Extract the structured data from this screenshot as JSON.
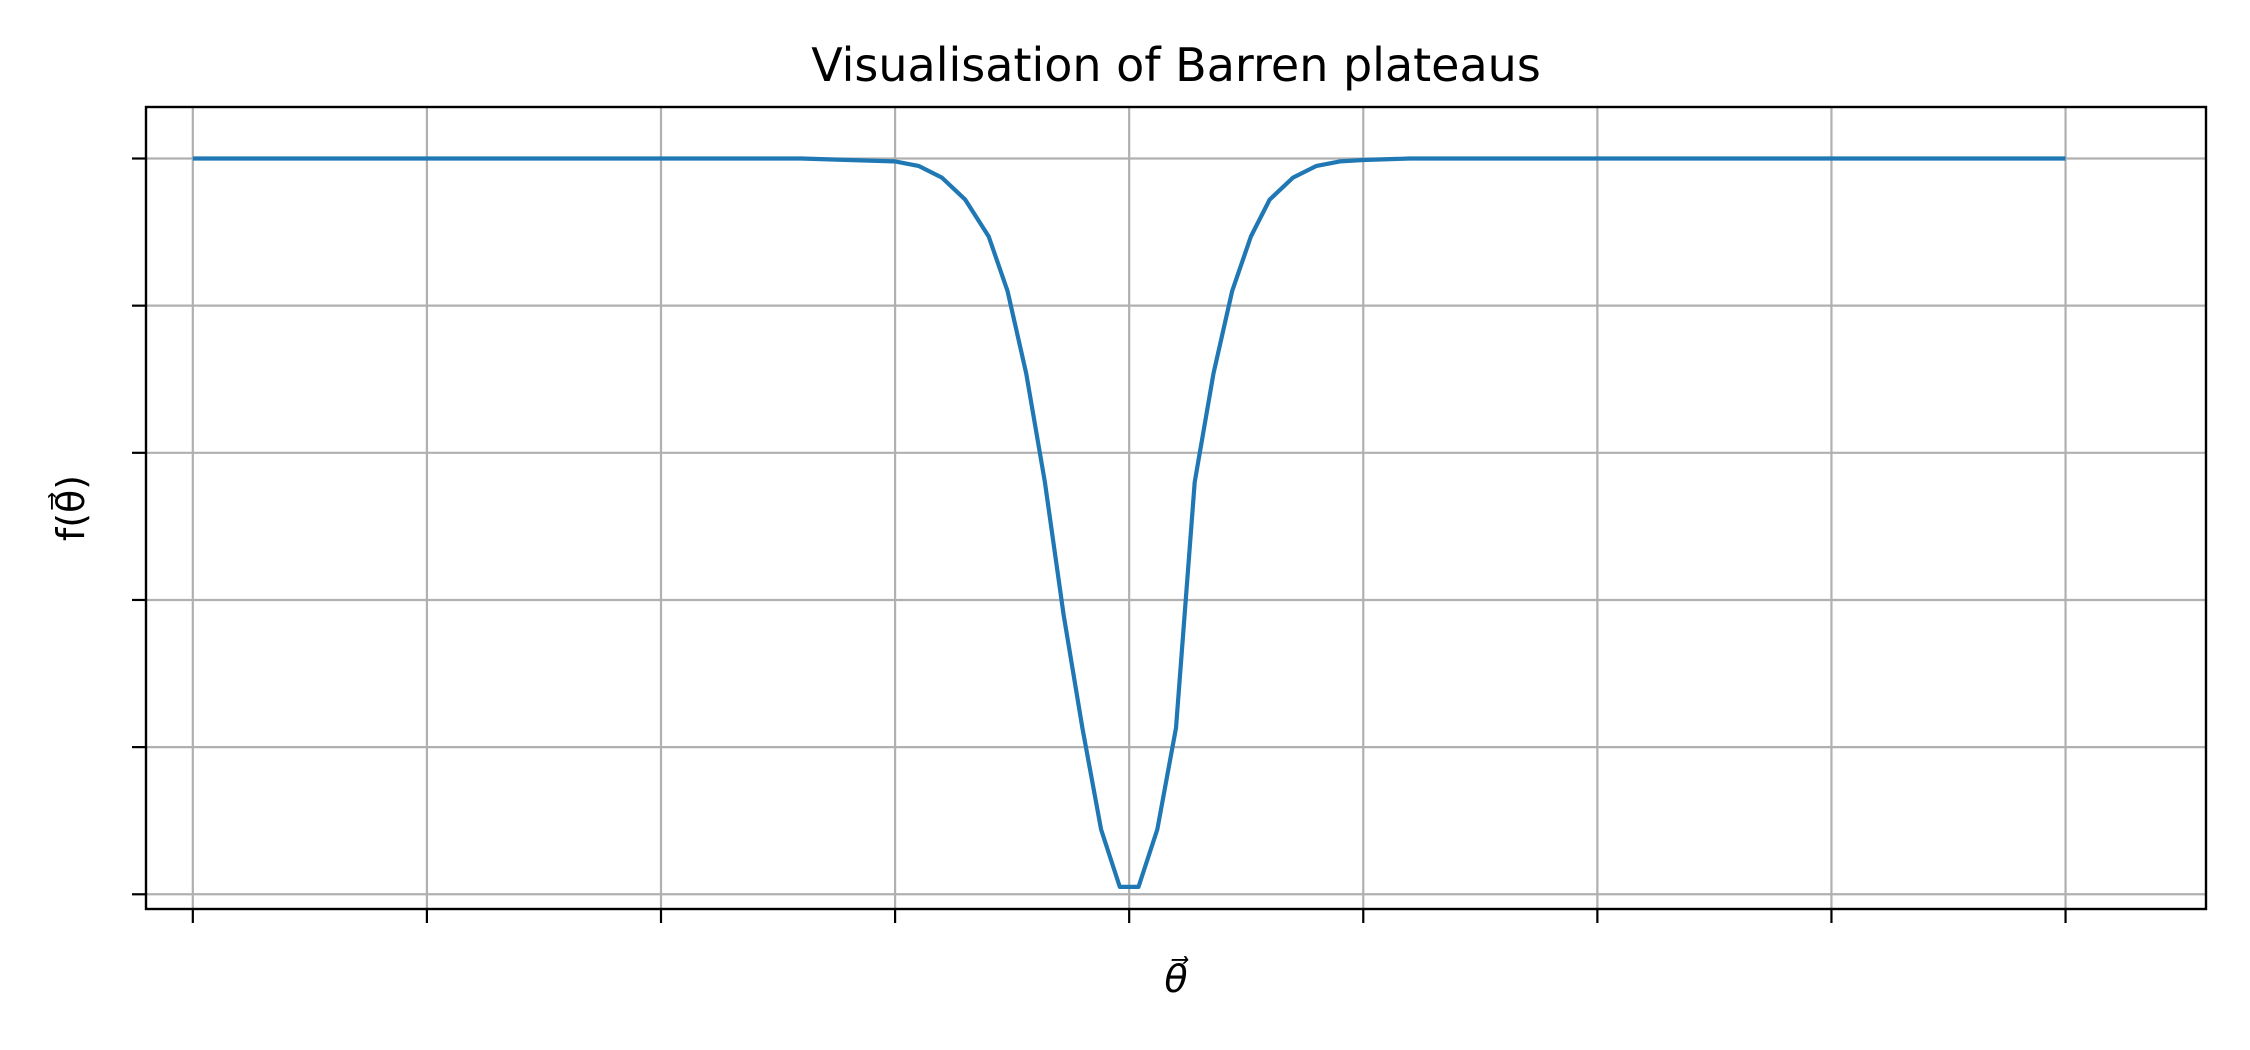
{
  "chart_data": {
    "type": "line",
    "title": "Visualisation of Barren plateaus",
    "xlabel": "θ⃗",
    "ylabel": "f(θ⃗)",
    "show_tick_labels": false,
    "xlim": [
      -4.2,
      4.6
    ],
    "ylim": [
      -0.1,
      5.35
    ],
    "x_ticks": [
      -4,
      -3,
      -2,
      -1,
      0,
      1,
      2,
      3,
      4
    ],
    "y_ticks": [
      0,
      1,
      2,
      3,
      4,
      5
    ],
    "grid": true,
    "series": [
      {
        "color": "#1f77b4",
        "x": [
          -4.0,
          -1.4,
          -1.2,
          -1.0,
          -0.9,
          -0.8,
          -0.7,
          -0.6,
          -0.52,
          -0.44,
          -0.36,
          -0.28,
          -0.2,
          -0.12,
          -0.04,
          0.04,
          0.12,
          0.2,
          0.28,
          0.36,
          0.44,
          0.52,
          0.6,
          0.7,
          0.8,
          0.9,
          1.0,
          1.2,
          1.4,
          4.0
        ],
        "y": [
          5.0,
          5.0,
          4.99,
          4.98,
          4.95,
          4.87,
          4.72,
          4.47,
          4.1,
          3.54,
          2.8,
          1.9,
          1.13,
          0.44,
          0.05,
          0.05,
          0.44,
          1.13,
          2.8,
          3.54,
          4.1,
          4.47,
          4.72,
          4.87,
          4.95,
          4.98,
          4.99,
          5.0,
          5.0,
          5.0
        ]
      }
    ]
  }
}
